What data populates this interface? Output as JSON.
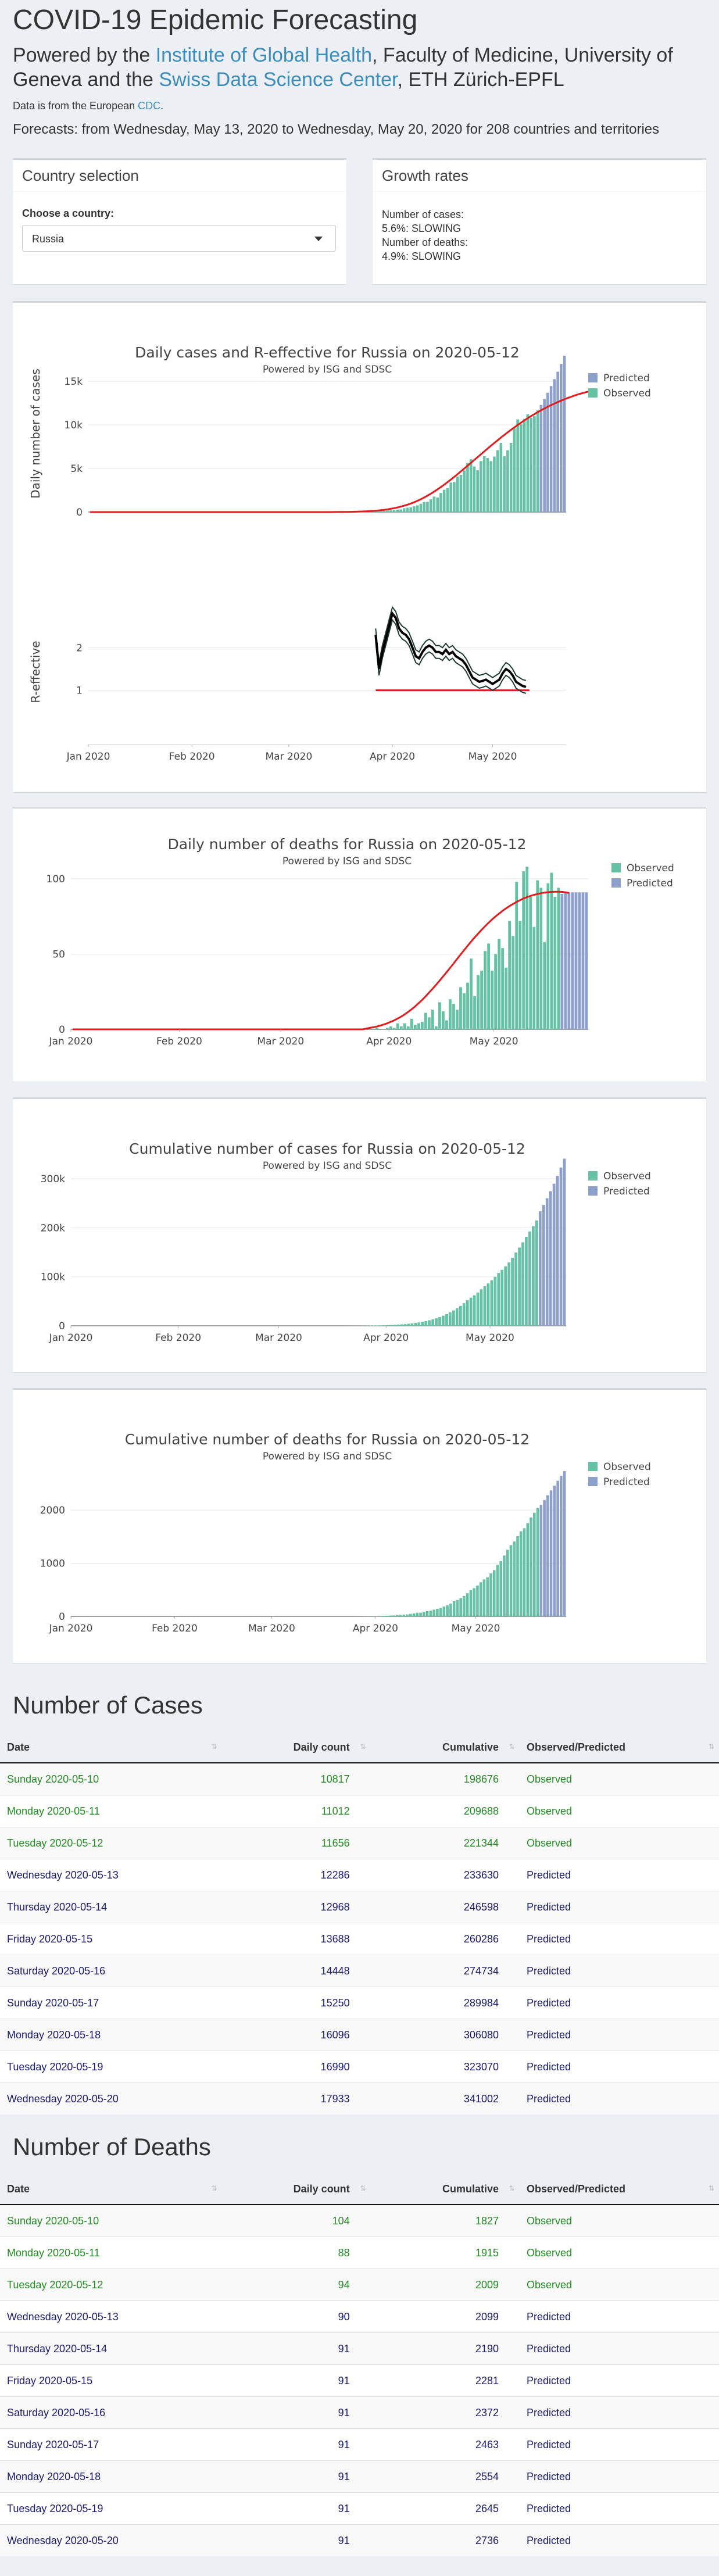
{
  "header": {
    "title": "COVID-19 Epidemic Forecasting",
    "powered_prefix": "Powered by the ",
    "igh_link": "Institute of Global Health",
    "powered_mid": ", Faculty of Medicine, University of Geneva and the ",
    "sdsc_link": "Swiss Data Science Center",
    "powered_suffix": ", ETH Zürich-EPFL",
    "source_prefix": "Data is from the European ",
    "source_link": "CDC",
    "source_suffix": ".",
    "forecast_range": "Forecasts: from Wednesday, May 13, 2020 to Wednesday, May 20, 2020 for 208 countries and territories"
  },
  "country_panel": {
    "title": "Country selection",
    "label": "Choose a country:",
    "selected": "Russia"
  },
  "growth_panel": {
    "title": "Growth rates",
    "cases_label": "Number of cases:",
    "cases_value": "5.6%: SLOWING",
    "deaths_label": "Number of deaths:",
    "deaths_value": "4.9%: SLOWING"
  },
  "colors": {
    "observed": "#66c2a5",
    "predicted": "#8da0cb",
    "fit_line": "#e41a1c",
    "reff_line": "#1b3a32"
  },
  "chart_data": [
    {
      "id": "daily_cases",
      "type": "bar",
      "title": "Daily cases and R-effective for Russia on 2020-05-12",
      "subtitle": "Powered by ISG and SDSC",
      "ylabel": "Daily number of cases",
      "ylim": [
        0,
        18000
      ],
      "yticks": [
        0,
        5000,
        10000,
        15000
      ],
      "ytick_labels": [
        "0",
        "5k",
        "10k",
        "15k"
      ],
      "legend": [
        {
          "name": "Predicted",
          "color": "#8da0cb"
        },
        {
          "name": "Observed",
          "color": "#66c2a5"
        }
      ],
      "legend_placement": "top-right",
      "start_date": "2020-01-01",
      "observed_values": [
        0,
        0,
        0,
        0,
        0,
        0,
        0,
        0,
        0,
        0,
        0,
        0,
        0,
        0,
        0,
        0,
        0,
        0,
        0,
        0,
        0,
        0,
        0,
        0,
        0,
        0,
        0,
        0,
        0,
        0,
        0,
        0,
        0,
        0,
        0,
        0,
        0,
        0,
        0,
        0,
        0,
        0,
        0,
        0,
        0,
        0,
        0,
        0,
        0,
        0,
        0,
        0,
        0,
        0,
        0,
        0,
        0,
        0,
        0,
        0,
        0,
        0,
        0,
        0,
        0,
        0,
        0,
        0,
        0,
        0,
        0,
        0,
        0,
        0,
        0,
        3,
        4,
        12,
        11,
        16,
        32,
        36,
        38,
        52,
        64,
        72,
        88,
        110,
        140,
        190,
        190,
        270,
        280,
        310,
        440,
        500,
        550,
        660,
        770,
        950,
        1150,
        1180,
        1460,
        1780,
        1670,
        2190,
        2560,
        2730,
        3390,
        3450,
        4070,
        4270,
        4780,
        5640,
        6060,
        5230,
        4790,
        5850,
        6410,
        6200,
        5840,
        6360,
        7100,
        7930,
        6410,
        7090,
        7930,
        9620,
        10630,
        10100,
        10700,
        11230,
        10820,
        11010,
        11660
      ],
      "predicted_values": [
        12290,
        12970,
        13690,
        14450,
        15250,
        16100,
        16990,
        17930
      ],
      "fit_values": [
        0,
        0,
        0,
        0,
        0,
        0,
        0,
        0,
        0,
        0,
        0,
        0,
        0,
        0,
        0,
        0,
        0,
        0,
        0,
        0,
        0,
        0,
        0,
        0,
        0,
        0,
        0,
        0,
        0,
        0,
        0,
        0,
        0,
        0,
        0,
        0,
        0,
        0,
        0,
        0,
        0,
        0,
        0,
        0,
        0,
        0,
        0,
        0,
        0,
        0,
        0,
        0,
        0,
        0,
        0,
        0,
        0,
        0,
        0,
        0,
        0,
        0,
        0,
        0,
        0,
        0,
        0,
        0,
        0,
        0,
        0,
        0,
        0,
        5,
        8,
        12,
        16,
        22,
        28,
        36,
        46,
        58,
        72,
        90,
        112,
        140,
        172,
        210,
        256,
        310,
        372,
        444,
        526,
        620,
        726,
        846,
        980,
        1128,
        1292,
        1472,
        1668,
        1878,
        2104,
        2344,
        2598,
        2864,
        3142,
        3430,
        3728,
        4034,
        4346,
        4664,
        4986,
        5312,
        5640,
        5970,
        6300,
        6630,
        6958,
        7284,
        7606,
        7924,
        8238,
        8546,
        8848,
        9144,
        9434,
        9716,
        9990,
        10256,
        10514,
        10764,
        11004,
        11236,
        11460,
        11674,
        11880,
        12078,
        12268,
        12448,
        12620,
        12784,
        12940,
        13088,
        13228,
        13360,
        13484,
        13600,
        13708,
        13808,
        13900
      ],
      "xtick_labels": [
        "Jan 2020",
        "Feb 2020",
        "Mar 2020",
        "Apr 2020",
        "May 2020"
      ]
    },
    {
      "id": "r_effective",
      "type": "line",
      "ylabel": "R-effective",
      "ylim": [
        0,
        3
      ],
      "yticks": [
        1,
        2
      ],
      "xtick_labels": [
        "Jan 2020",
        "Feb 2020",
        "Mar 2020",
        "Apr 2020",
        "May 2020"
      ],
      "threshold": 1,
      "threshold_start": "2020-03-27",
      "threshold_end": "2020-05-12",
      "series_start": "2020-03-27",
      "values": [
        2.3,
        1.5,
        1.9,
        2.2,
        2.5,
        2.8,
        2.7,
        2.45,
        2.35,
        2.3,
        2.2,
        2.0,
        1.8,
        1.75,
        1.9,
        2.0,
        2.05,
        2.0,
        1.9,
        1.9,
        1.85,
        1.95,
        1.85,
        1.9,
        1.8,
        1.75,
        1.7,
        1.6,
        1.45,
        1.3,
        1.25,
        1.2,
        1.22,
        1.25,
        1.2,
        1.15,
        1.2,
        1.25,
        1.4,
        1.5,
        1.45,
        1.35,
        1.2,
        1.15,
        1.1,
        1.08
      ],
      "band": 0.15
    },
    {
      "id": "daily_deaths",
      "type": "bar",
      "title": "Daily number of deaths for Russia on 2020-05-12",
      "subtitle": "Powered by ISG and SDSC",
      "ylim": [
        0,
        110
      ],
      "yticks": [
        0,
        50,
        100
      ],
      "legend": [
        {
          "name": "Observed",
          "color": "#66c2a5"
        },
        {
          "name": "Predicted",
          "color": "#8da0cb"
        }
      ],
      "legend_placement": "top-right",
      "start_date": "2020-01-01",
      "observed_values": [
        0,
        0,
        0,
        0,
        0,
        0,
        0,
        0,
        0,
        0,
        0,
        0,
        0,
        0,
        0,
        0,
        0,
        0,
        0,
        0,
        0,
        0,
        0,
        0,
        0,
        0,
        0,
        0,
        0,
        0,
        0,
        0,
        0,
        0,
        0,
        0,
        0,
        0,
        0,
        0,
        0,
        0,
        0,
        0,
        0,
        0,
        0,
        0,
        0,
        0,
        0,
        0,
        0,
        0,
        0,
        0,
        0,
        0,
        0,
        0,
        0,
        0,
        0,
        0,
        0,
        0,
        0,
        0,
        0,
        0,
        0,
        0,
        0,
        0,
        0,
        0,
        0,
        0,
        0,
        0,
        0,
        0,
        0,
        0,
        0,
        1,
        0,
        1,
        0,
        0,
        1,
        2,
        1,
        4,
        2,
        4,
        2,
        7,
        3,
        4,
        5,
        11,
        8,
        13,
        2,
        18,
        12,
        6,
        20,
        17,
        13,
        28,
        24,
        31,
        47,
        22,
        36,
        39,
        52,
        57,
        39,
        50,
        60,
        54,
        41,
        72,
        62,
        98,
        72,
        105,
        108,
        88,
        68,
        99,
        94,
        58,
        97,
        104,
        88,
        94
      ],
      "predicted_values": [
        90,
        91,
        91,
        91,
        91,
        91,
        91,
        91
      ],
      "fit_values": [
        0,
        0,
        0,
        0,
        0,
        0,
        0,
        0,
        0,
        0,
        0,
        0,
        0,
        0,
        0,
        0,
        0,
        0,
        0,
        0,
        0,
        0,
        0,
        0,
        0,
        0,
        0,
        0,
        0,
        0,
        0,
        0,
        0,
        0,
        0,
        0,
        0,
        0,
        0,
        0,
        0,
        0,
        0,
        0,
        0,
        0,
        0,
        0,
        0,
        0,
        0,
        0,
        0,
        0,
        0,
        0,
        0,
        0,
        0,
        0,
        0,
        0,
        0,
        0,
        0,
        0,
        0,
        0,
        0,
        0,
        0,
        0,
        0,
        0,
        0,
        0,
        0,
        0,
        0,
        0,
        0,
        0,
        0,
        0,
        0.5,
        1,
        1.4,
        1.9,
        2.5,
        3.2,
        4,
        5,
        6,
        7.2,
        8.5,
        10,
        11.6,
        13.4,
        15.3,
        17.4,
        19.6,
        22,
        24.5,
        27,
        29.7,
        32.4,
        35.2,
        38,
        40.9,
        43.8,
        46.8,
        49.7,
        52.6,
        55.5,
        58.3,
        61,
        63.6,
        66.1,
        68.5,
        70.8,
        73,
        75,
        76.9,
        78.7,
        80.4,
        81.9,
        83.3,
        84.6,
        85.8,
        86.9,
        87.8,
        88.6,
        89.3,
        89.9,
        90.4,
        90.8,
        91.1,
        91.3,
        91.4,
        91.4,
        91.3,
        91,
        90.5
      ],
      "xtick_labels": [
        "Jan 2020",
        "Feb 2020",
        "Mar 2020",
        "Apr 2020",
        "May 2020"
      ]
    },
    {
      "id": "cumulative_cases",
      "type": "bar",
      "title": "Cumulative number of cases for Russia on 2020-05-12",
      "subtitle": "Powered by ISG and SDSC",
      "ylim": [
        0,
        350000
      ],
      "yticks": [
        0,
        100000,
        200000,
        300000
      ],
      "ytick_labels": [
        "0",
        "100k",
        "200k",
        "300k"
      ],
      "legend": [
        {
          "name": "Observed",
          "color": "#66c2a5"
        },
        {
          "name": "Predicted",
          "color": "#8da0cb"
        }
      ],
      "legend_placement": "top-right",
      "start_date": "2020-01-01",
      "xtick_labels": [
        "Jan 2020",
        "Feb 2020",
        "Mar 2020",
        "Apr 2020",
        "May 2020"
      ],
      "cumulative_of": "daily_cases",
      "predicted_values": [
        233630,
        246598,
        260286,
        274734,
        289984,
        306080,
        323070,
        341002
      ]
    },
    {
      "id": "cumulative_deaths",
      "type": "bar",
      "title": "Cumulative number of deaths for Russia on 2020-05-12",
      "subtitle": "Powered by ISG and SDSC",
      "ylim": [
        0,
        2900
      ],
      "yticks": [
        0,
        1000,
        2000
      ],
      "legend": [
        {
          "name": "Observed",
          "color": "#66c2a5"
        },
        {
          "name": "Predicted",
          "color": "#8da0cb"
        }
      ],
      "legend_placement": "top-right",
      "start_date": "2020-01-01",
      "xtick_labels": [
        "Jan 2020",
        "Feb 2020",
        "Mar 2020",
        "Apr 2020",
        "May 2020"
      ],
      "cumulative_of": "daily_deaths",
      "predicted_values": [
        2099,
        2190,
        2281,
        2372,
        2463,
        2554,
        2645,
        2736
      ]
    }
  ],
  "cases_table": {
    "title": "Number of Cases",
    "headers": [
      "Date",
      "Daily count",
      "Cumulative",
      "Observed/Predicted"
    ],
    "rows": [
      [
        "Sunday 2020-05-10",
        "10817",
        "198676",
        "Observed"
      ],
      [
        "Monday 2020-05-11",
        "11012",
        "209688",
        "Observed"
      ],
      [
        "Tuesday 2020-05-12",
        "11656",
        "221344",
        "Observed"
      ],
      [
        "Wednesday 2020-05-13",
        "12286",
        "233630",
        "Predicted"
      ],
      [
        "Thursday 2020-05-14",
        "12968",
        "246598",
        "Predicted"
      ],
      [
        "Friday 2020-05-15",
        "13688",
        "260286",
        "Predicted"
      ],
      [
        "Saturday 2020-05-16",
        "14448",
        "274734",
        "Predicted"
      ],
      [
        "Sunday 2020-05-17",
        "15250",
        "289984",
        "Predicted"
      ],
      [
        "Monday 2020-05-18",
        "16096",
        "306080",
        "Predicted"
      ],
      [
        "Tuesday 2020-05-19",
        "16990",
        "323070",
        "Predicted"
      ],
      [
        "Wednesday 2020-05-20",
        "17933",
        "341002",
        "Predicted"
      ]
    ]
  },
  "deaths_table": {
    "title": "Number of Deaths",
    "headers": [
      "Date",
      "Daily count",
      "Cumulative",
      "Observed/Predicted"
    ],
    "rows": [
      [
        "Sunday 2020-05-10",
        "104",
        "1827",
        "Observed"
      ],
      [
        "Monday 2020-05-11",
        "88",
        "1915",
        "Observed"
      ],
      [
        "Tuesday 2020-05-12",
        "94",
        "2009",
        "Observed"
      ],
      [
        "Wednesday 2020-05-13",
        "90",
        "2099",
        "Predicted"
      ],
      [
        "Thursday 2020-05-14",
        "91",
        "2190",
        "Predicted"
      ],
      [
        "Friday 2020-05-15",
        "91",
        "2281",
        "Predicted"
      ],
      [
        "Saturday 2020-05-16",
        "91",
        "2372",
        "Predicted"
      ],
      [
        "Sunday 2020-05-17",
        "91",
        "2463",
        "Predicted"
      ],
      [
        "Monday 2020-05-18",
        "91",
        "2554",
        "Predicted"
      ],
      [
        "Tuesday 2020-05-19",
        "91",
        "2645",
        "Predicted"
      ],
      [
        "Wednesday 2020-05-20",
        "91",
        "2736",
        "Predicted"
      ]
    ]
  }
}
